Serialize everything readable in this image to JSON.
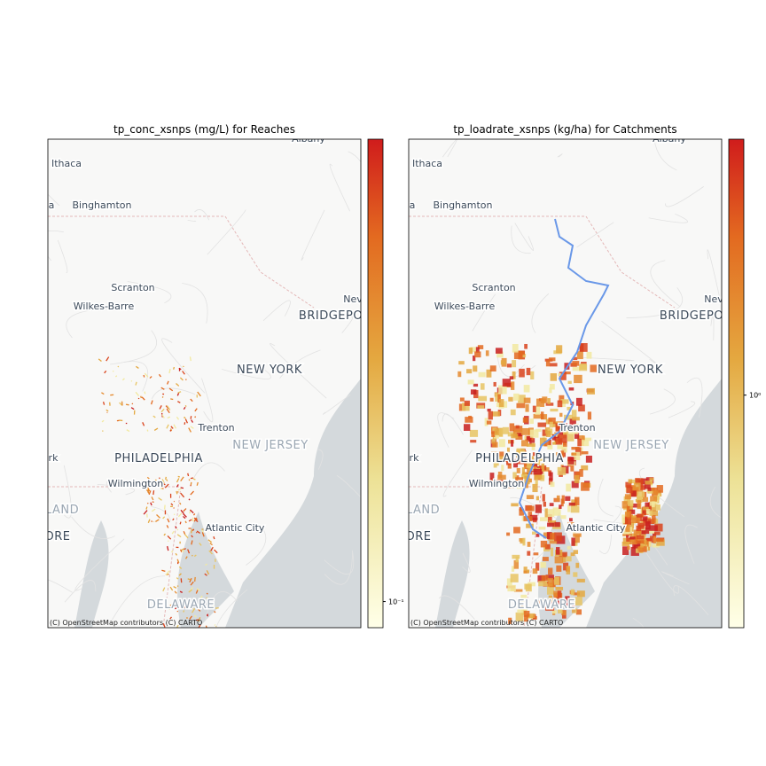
{
  "panels": [
    {
      "title": "tp_conc_xsnps (mg/L) for Reaches",
      "colorbar": {
        "scale": "log",
        "clim": [
          0.085,
          1.78
        ],
        "ticks": [
          {
            "value": 0.1,
            "label": "10⁻¹"
          }
        ]
      }
    },
    {
      "title": "tp_loadrate_xsnps (kg/ha) for Catchments",
      "colorbar": {
        "scale": "log",
        "clim": [
          0.1,
          12.6
        ],
        "ticks": [
          {
            "value": 1,
            "label": "10⁰"
          }
        ]
      }
    }
  ],
  "map_labels": [
    "Albany",
    "Ithaca",
    "a",
    "Binghamton",
    "Scranton",
    "Wilkes-Barre",
    "Nev",
    "BRIDGEPO",
    "NEW YORK",
    "Trenton",
    "NEW JERSEY",
    "PHILADELPHIA",
    "rk",
    "Wilmington",
    "LAND",
    "ORE",
    "Atlantic City",
    "DELAWARE"
  ],
  "attribution": "(C) OpenStreetMap contributors (C) CARTO"
}
